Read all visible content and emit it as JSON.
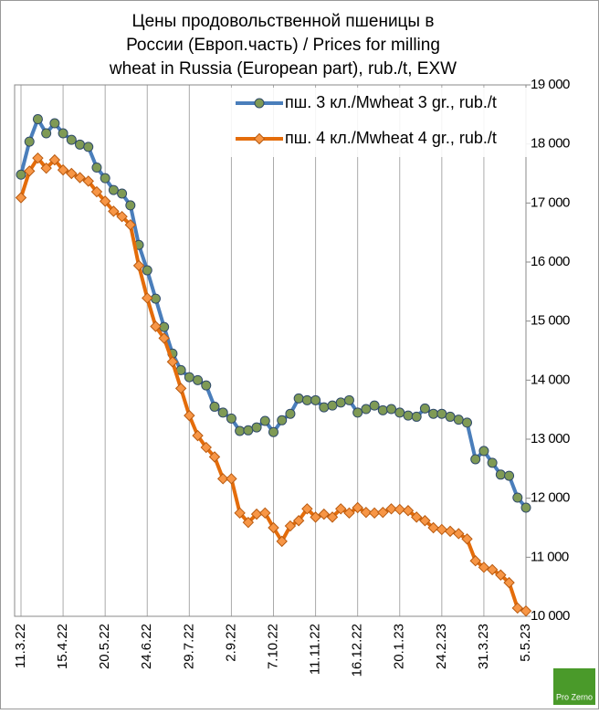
{
  "chart_data": {
    "type": "line",
    "title": [
      "Цены продовольственной пшеницы в",
      "России (Европ.часть) / Prices for milling",
      "wheat in Russia (European part), rub./t, EXW"
    ],
    "categories": [
      "11.3.22",
      null,
      null,
      null,
      null,
      "15.4.22",
      null,
      null,
      null,
      null,
      "20.5.22",
      null,
      null,
      null,
      null,
      "24.6.22",
      null,
      null,
      null,
      null,
      "29.7.22",
      null,
      null,
      null,
      null,
      "2.9.22",
      null,
      null,
      null,
      null,
      "7.10.22",
      null,
      null,
      null,
      null,
      "11.11.22",
      null,
      null,
      null,
      null,
      "16.12.22",
      null,
      null,
      null,
      null,
      "20.1.23",
      null,
      null,
      null,
      null,
      "24.2.23",
      null,
      null,
      null,
      null,
      "31.3.23",
      null,
      null,
      null,
      null,
      "5.5.23"
    ],
    "series": [
      {
        "name": "пш. 3 кл./Mwheat 3 gr., rub./t",
        "color": "#4a7ebb",
        "marker_color": "#7f9a55",
        "marker": "circle",
        "values": [
          17480,
          18040,
          18420,
          18180,
          18350,
          18180,
          18070,
          17990,
          17950,
          17600,
          17420,
          17220,
          17160,
          16960,
          16290,
          15860,
          15380,
          14900,
          14450,
          14170,
          14050,
          14000,
          13910,
          13550,
          13450,
          13350,
          13140,
          13150,
          13200,
          13310,
          13120,
          13320,
          13430,
          13690,
          13660,
          13660,
          13540,
          13570,
          13620,
          13660,
          13450,
          13510,
          13570,
          13490,
          13510,
          13450,
          13400,
          13380,
          13520,
          13430,
          13430,
          13380,
          13330,
          13280,
          12660,
          12800,
          12600,
          12400,
          12380,
          12010,
          11840
        ]
      },
      {
        "name": "пш. 4 кл./Mwheat 4 gr., rub./t",
        "color": "#e46c0a",
        "marker_color": "#f79646",
        "marker": "diamond",
        "values": [
          17090,
          17540,
          17760,
          17590,
          17730,
          17560,
          17500,
          17430,
          17370,
          17190,
          17030,
          16860,
          16770,
          16630,
          15940,
          15390,
          14910,
          14710,
          14310,
          13860,
          13400,
          13060,
          12860,
          12700,
          12330,
          12330,
          11750,
          11590,
          11730,
          11750,
          11500,
          11270,
          11530,
          11620,
          11820,
          11680,
          11730,
          11680,
          11820,
          11750,
          11840,
          11760,
          11750,
          11760,
          11820,
          11810,
          11790,
          11680,
          11620,
          11500,
          11470,
          11440,
          11400,
          11310,
          10940,
          10830,
          10790,
          10700,
          10570,
          10140,
          10090
        ]
      }
    ],
    "ylim": [
      10000,
      19000
    ],
    "yticks": [
      {
        "value": 10000,
        "label": "10 000"
      },
      {
        "value": 11000,
        "label": "11 000"
      },
      {
        "value": 12000,
        "label": "12 000"
      },
      {
        "value": 13000,
        "label": "13 000"
      },
      {
        "value": 14000,
        "label": "14 000"
      },
      {
        "value": 15000,
        "label": "15 000"
      },
      {
        "value": 16000,
        "label": "16 000"
      },
      {
        "value": 17000,
        "label": "17 000"
      },
      {
        "value": 18000,
        "label": "18 000"
      },
      {
        "value": 19000,
        "label": "19 000"
      }
    ],
    "y_axis_side": "right",
    "grid": "vertical",
    "legend": "top-right",
    "logo_text": "Pro Zerno"
  }
}
